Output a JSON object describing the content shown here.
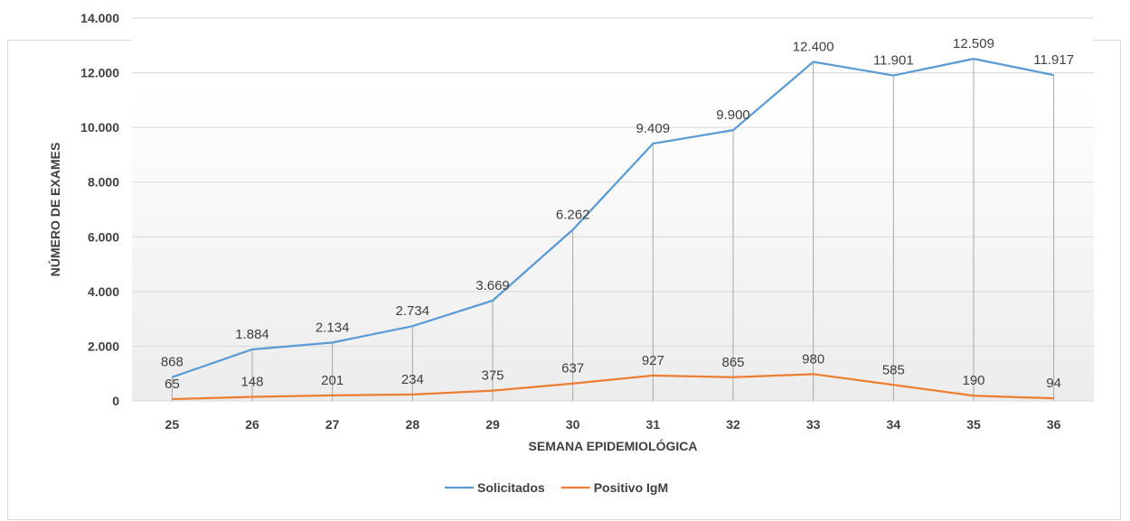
{
  "chart_data": {
    "type": "line",
    "categories": [
      "25",
      "26",
      "27",
      "28",
      "29",
      "30",
      "31",
      "32",
      "33",
      "34",
      "35",
      "36"
    ],
    "series": [
      {
        "name": "Solicitados",
        "color": "#5b9bd5",
        "values": [
          868,
          1884,
          2134,
          2734,
          3669,
          6262,
          9409,
          9900,
          12400,
          11901,
          12509,
          11917
        ],
        "labels": [
          "868",
          "1.884",
          "2.134",
          "2.734",
          "3.669",
          "6.262",
          "9.409",
          "9.900",
          "12.400",
          "11.901",
          "12.509",
          "11.917"
        ]
      },
      {
        "name": "Positivo IgM",
        "color": "#ed7d31",
        "values": [
          65,
          148,
          201,
          234,
          375,
          637,
          927,
          865,
          980,
          585,
          190,
          94
        ],
        "labels": [
          "65",
          "148",
          "201",
          "234",
          "375",
          "637",
          "927",
          "865",
          "980",
          "585",
          "190",
          "94"
        ]
      }
    ],
    "y_ticks": [
      0,
      2000,
      4000,
      6000,
      8000,
      10000,
      12000,
      14000
    ],
    "y_tick_labels": [
      "0",
      "2.000",
      "4.000",
      "6.000",
      "8.000",
      "10.000",
      "12.000",
      "14.000"
    ],
    "ylim": [
      0,
      14000
    ],
    "xlabel": "SEMANA EPIDEMIOLÓGICA",
    "ylabel": "NÚMERO DE EXAMES",
    "grid": true,
    "drop_lines": true,
    "legend_position": "bottom-center"
  }
}
